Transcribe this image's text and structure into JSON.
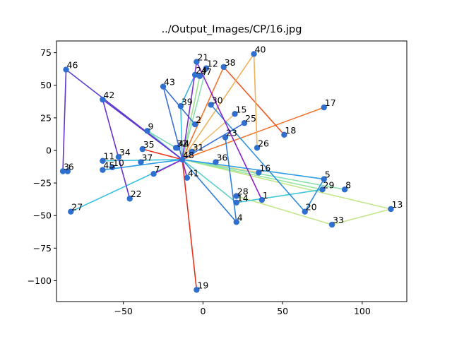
{
  "chart_data": {
    "type": "scatter",
    "title": "../Output_Images/CP/16.jpg",
    "xlabel": "",
    "ylabel": "",
    "xlim": [
      -92,
      128
    ],
    "ylim": [
      -116,
      84
    ],
    "xticks": [
      -50,
      0,
      50,
      100
    ],
    "yticks": [
      -100,
      -75,
      -50,
      -25,
      0,
      25,
      50,
      75
    ],
    "xtick_labels": [
      "−50",
      "0",
      "50",
      "100"
    ],
    "ytick_labels": [
      "−100",
      "−75",
      "−50",
      "−25",
      "0",
      "25",
      "50",
      "75"
    ],
    "grid": false,
    "legend": "none",
    "point_color": "#2f6fcf",
    "points": [
      {
        "label": "1",
        "x": 37,
        "y": -38
      },
      {
        "label": "2",
        "x": -5,
        "y": 20
      },
      {
        "label": "4",
        "x": 21,
        "y": -55
      },
      {
        "label": "5",
        "x": 76,
        "y": -22
      },
      {
        "label": "7",
        "x": -31,
        "y": -18
      },
      {
        "label": "8",
        "x": 89,
        "y": -30
      },
      {
        "label": "9",
        "x": -35,
        "y": 15
      },
      {
        "label": "10",
        "x": -57,
        "y": -13
      },
      {
        "label": "11",
        "x": -63,
        "y": -8
      },
      {
        "label": "12",
        "x": 2,
        "y": 63
      },
      {
        "label": "13",
        "x": 118,
        "y": -45
      },
      {
        "label": "14",
        "x": 21,
        "y": -40
      },
      {
        "label": "15",
        "x": 20,
        "y": 28
      },
      {
        "label": "16",
        "x": 35,
        "y": -17
      },
      {
        "label": "17",
        "x": 76,
        "y": 33
      },
      {
        "label": "18",
        "x": 51,
        "y": 12
      },
      {
        "label": "19",
        "x": -4,
        "y": -107
      },
      {
        "label": "20",
        "x": 64,
        "y": -47
      },
      {
        "label": "21",
        "x": -4,
        "y": 68
      },
      {
        "label": "22",
        "x": -46,
        "y": -37
      },
      {
        "label": "23",
        "x": 14,
        "y": 10
      },
      {
        "label": "24",
        "x": -5,
        "y": 58
      },
      {
        "label": "25",
        "x": 26,
        "y": 21
      },
      {
        "label": "26",
        "x": 34,
        "y": 2
      },
      {
        "label": "27",
        "x": -83,
        "y": -47
      },
      {
        "label": "28",
        "x": 21,
        "y": -35
      },
      {
        "label": "29",
        "x": 75,
        "y": -30
      },
      {
        "label": "30",
        "x": 5,
        "y": 35
      },
      {
        "label": "31",
        "x": -7,
        "y": -1
      },
      {
        "label": "32",
        "x": -17,
        "y": 2
      },
      {
        "label": "33",
        "x": 81,
        "y": -57
      },
      {
        "label": "34",
        "x": -53,
        "y": -5
      },
      {
        "label": "35",
        "x": -38,
        "y": 1
      },
      {
        "label": "36",
        "x": 8,
        "y": -9
      },
      {
        "label": "37",
        "x": -39,
        "y": -9
      },
      {
        "label": "38",
        "x": 13,
        "y": 64
      },
      {
        "label": "39",
        "x": -14,
        "y": 34
      },
      {
        "label": "40",
        "x": 32,
        "y": 74
      },
      {
        "label": "41",
        "x": -10,
        "y": -21
      },
      {
        "label": "42",
        "x": -63,
        "y": 39
      },
      {
        "label": "43",
        "x": -25,
        "y": 49
      },
      {
        "label": "44",
        "x": -16,
        "y": 2
      },
      {
        "label": "45",
        "x": -63,
        "y": -15
      },
      {
        "label": "46",
        "x": -86,
        "y": 62
      },
      {
        "label": "47",
        "x": -2,
        "y": 57
      },
      {
        "label": "48",
        "x": -13,
        "y": -7
      },
      {
        "label": "3",
        "x": -88,
        "y": -16
      },
      {
        "label": "6",
        "x": -85,
        "y": -16
      }
    ],
    "segments": [
      {
        "from": "48",
        "to": "19",
        "color": "#e8331c"
      },
      {
        "from": "48",
        "to": "35",
        "color": "#e8331c"
      },
      {
        "from": "48",
        "to": "17",
        "color": "#f2762e"
      },
      {
        "from": "48",
        "to": "38",
        "color": "#f2762e"
      },
      {
        "from": "38",
        "to": "18",
        "color": "#ef5a26"
      },
      {
        "from": "48",
        "to": "40",
        "color": "#efb15a"
      },
      {
        "from": "40",
        "to": "26",
        "color": "#efb15a"
      },
      {
        "from": "48",
        "to": "15",
        "color": "#f0c070"
      },
      {
        "from": "48",
        "to": "16",
        "color": "#f5d38a"
      },
      {
        "from": "48",
        "to": "13",
        "color": "#c4e68a"
      },
      {
        "from": "13",
        "to": "33",
        "color": "#c4e68a"
      },
      {
        "from": "33",
        "to": "28",
        "color": "#c4e68a"
      },
      {
        "from": "48",
        "to": "29",
        "color": "#99e6a0"
      },
      {
        "from": "48",
        "to": "8",
        "color": "#88e2b0"
      },
      {
        "from": "48",
        "to": "12",
        "color": "#88e2b0"
      },
      {
        "from": "48",
        "to": "47",
        "color": "#a0e08c"
      },
      {
        "from": "48",
        "to": "9",
        "color": "#7ad9b8"
      },
      {
        "from": "9",
        "to": "32",
        "color": "#7ad9b8"
      },
      {
        "from": "48",
        "to": "14",
        "color": "#5fd1c8"
      },
      {
        "from": "14",
        "to": "29",
        "color": "#40c8d8"
      },
      {
        "from": "48",
        "to": "27",
        "color": "#38c2e0"
      },
      {
        "from": "48",
        "to": "11",
        "color": "#38c2e0"
      },
      {
        "from": "48",
        "to": "39",
        "color": "#38c2e0"
      },
      {
        "from": "39",
        "to": "24",
        "color": "#3fb0e4"
      },
      {
        "from": "48",
        "to": "45",
        "color": "#2f9de6"
      },
      {
        "from": "48",
        "to": "5",
        "color": "#2f9de6"
      },
      {
        "from": "5",
        "to": "20",
        "color": "#2f8fe0"
      },
      {
        "from": "20",
        "to": "30",
        "color": "#2f8fe0"
      },
      {
        "from": "48",
        "to": "4",
        "color": "#2f7fdc"
      },
      {
        "from": "4",
        "to": "23",
        "color": "#2f7fdc"
      },
      {
        "from": "48",
        "to": "25",
        "color": "#3a6fd8"
      },
      {
        "from": "48",
        "to": "43",
        "color": "#3a6fd8"
      },
      {
        "from": "43",
        "to": "2",
        "color": "#3a6fd8"
      },
      {
        "from": "48",
        "to": "46",
        "color": "#5a3fd2"
      },
      {
        "from": "46",
        "to": "3",
        "color": "#6233d0"
      },
      {
        "from": "48",
        "to": "42",
        "color": "#6233d0"
      },
      {
        "from": "42",
        "to": "22",
        "color": "#6a2fd0"
      },
      {
        "from": "48",
        "to": "21",
        "color": "#7a2fd0"
      },
      {
        "from": "21",
        "to": "1",
        "color": "#8a22d0"
      },
      {
        "from": "48",
        "to": "41",
        "color": "#8a22d0"
      },
      {
        "from": "48",
        "to": "7",
        "color": "#8a22d0"
      }
    ]
  }
}
